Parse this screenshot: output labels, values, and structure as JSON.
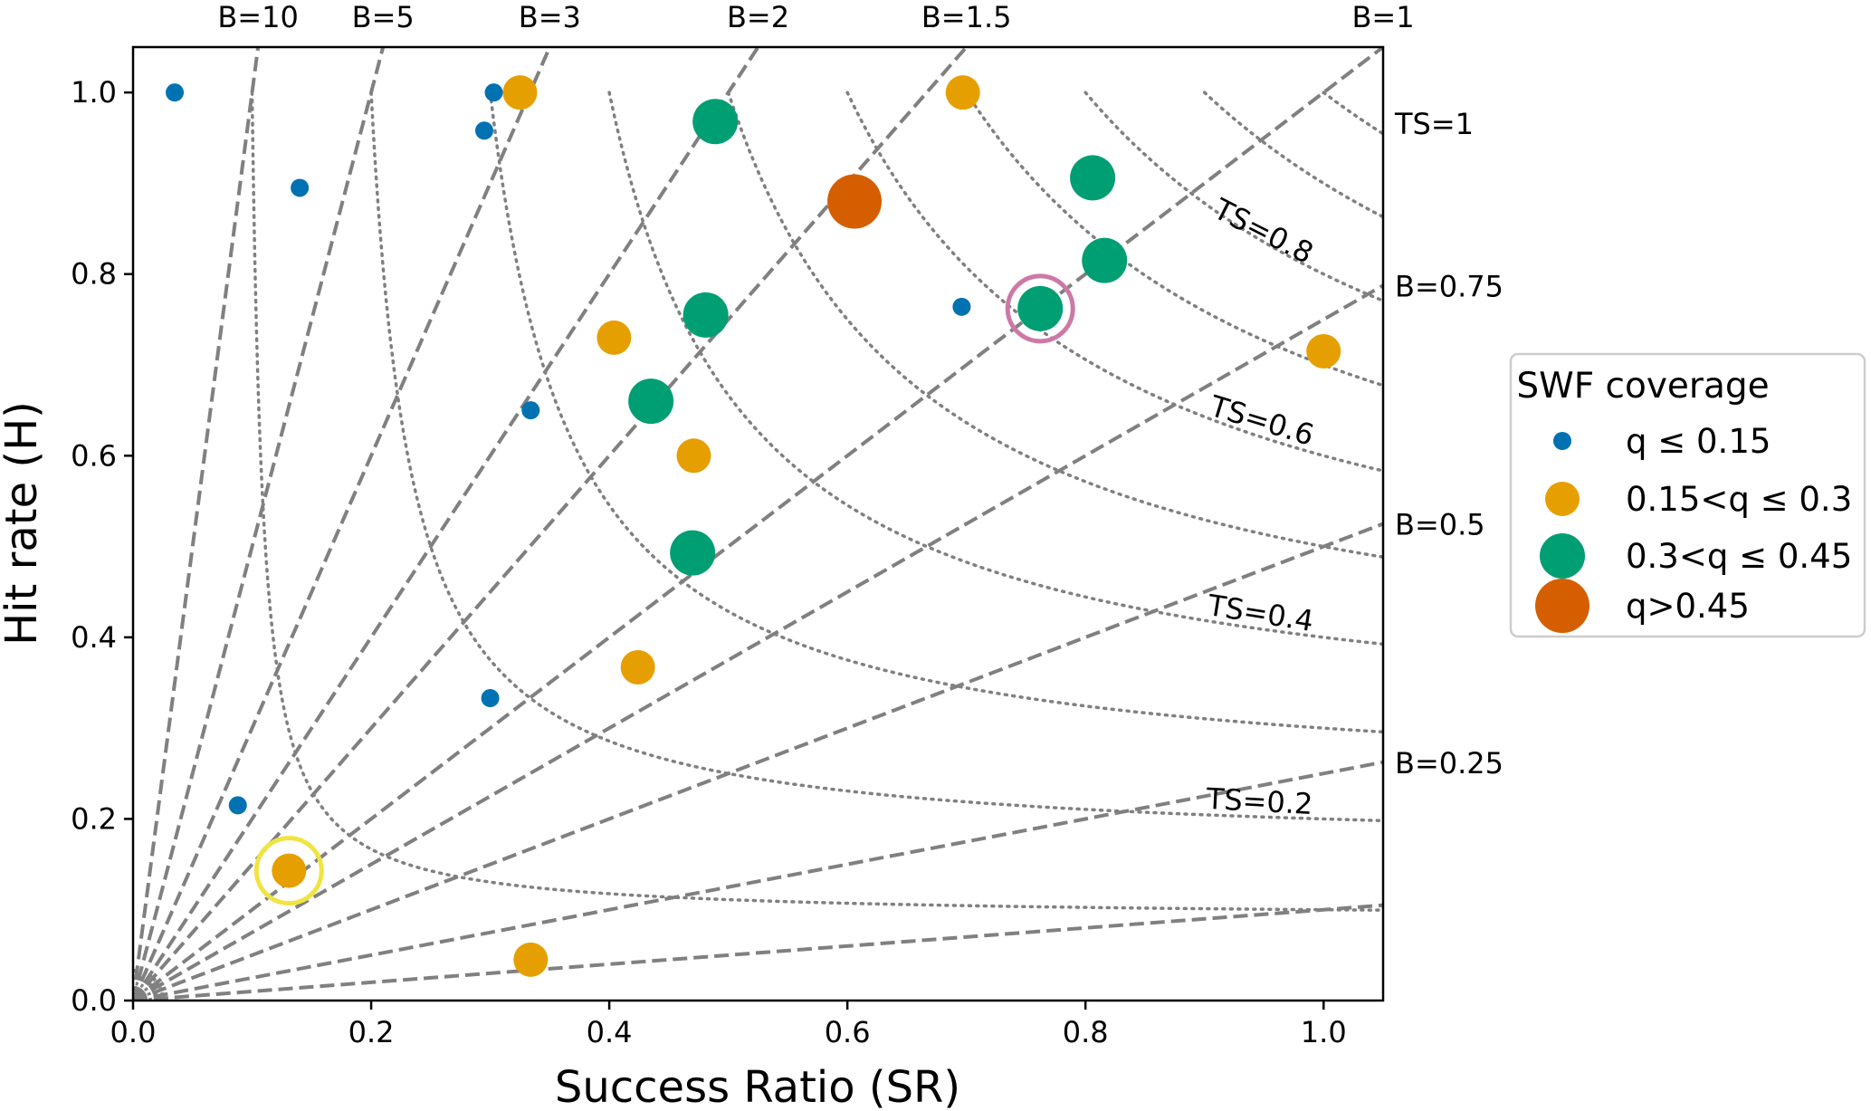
{
  "chart_data": {
    "type": "scatter",
    "subtype": "performance-diagram",
    "xlabel": "Success Ratio (SR)",
    "ylabel": "Hit rate (H)",
    "xlim": [
      0,
      1.05
    ],
    "ylim": [
      0,
      1.05
    ],
    "xticks": [
      0.0,
      0.2,
      0.4,
      0.6,
      0.8,
      1.0
    ],
    "yticks": [
      0.0,
      0.2,
      0.4,
      0.6,
      0.8,
      1.0
    ],
    "xtick_labels": [
      "0.0",
      "0.2",
      "0.4",
      "0.6",
      "0.8",
      "1.0"
    ],
    "ytick_labels": [
      "0.0",
      "0.2",
      "0.4",
      "0.6",
      "0.8",
      "1.0"
    ],
    "bias_lines": [
      {
        "bias": 10,
        "label": "B=10"
      },
      {
        "bias": 5,
        "label": "B=5"
      },
      {
        "bias": 3,
        "label": "B=3"
      },
      {
        "bias": 2,
        "label": "B=2"
      },
      {
        "bias": 1.5,
        "label": "B=1.5"
      },
      {
        "bias": 1,
        "label": "B=1"
      },
      {
        "bias": 0.75,
        "label": "B=0.75"
      },
      {
        "bias": 0.5,
        "label": "B=0.5"
      },
      {
        "bias": 0.25,
        "label": "B=0.25"
      },
      {
        "bias": 0.1,
        "label": ""
      }
    ],
    "ts_contours": [
      {
        "ts": 0.1,
        "label": ""
      },
      {
        "ts": 0.2,
        "label": "TS=0.2"
      },
      {
        "ts": 0.3,
        "label": ""
      },
      {
        "ts": 0.4,
        "label": "TS=0.4"
      },
      {
        "ts": 0.5,
        "label": ""
      },
      {
        "ts": 0.6,
        "label": "TS=0.6"
      },
      {
        "ts": 0.7,
        "label": ""
      },
      {
        "ts": 0.8,
        "label": "TS=0.8"
      },
      {
        "ts": 0.9,
        "label": ""
      },
      {
        "ts": 1.0,
        "label": "TS=1"
      }
    ],
    "legend": {
      "title": "SWF coverage",
      "placement": "right",
      "entries": [
        {
          "key": "q1",
          "label": "q ≤ 0.15",
          "color": "#0072b2"
        },
        {
          "key": "q2",
          "label": "0.15<q ≤ 0.3",
          "color": "#e69f00"
        },
        {
          "key": "q3",
          "label": "0.3<q ≤ 0.45",
          "color": "#009e73"
        },
        {
          "key": "q4",
          "label": "q>0.45",
          "color": "#d55e00"
        }
      ]
    },
    "series": [
      {
        "name": "q ≤ 0.15",
        "key": "q1",
        "points": [
          {
            "sr": 0.035,
            "h": 1.0
          },
          {
            "sr": 0.14,
            "h": 0.895
          },
          {
            "sr": 0.303,
            "h": 1.0
          },
          {
            "sr": 0.295,
            "h": 0.958
          },
          {
            "sr": 0.334,
            "h": 0.65
          },
          {
            "sr": 0.3,
            "h": 0.333
          },
          {
            "sr": 0.088,
            "h": 0.215
          },
          {
            "sr": 0.696,
            "h": 0.764
          }
        ]
      },
      {
        "name": "0.15<q ≤ 0.3",
        "key": "q2",
        "points": [
          {
            "sr": 0.325,
            "h": 1.0
          },
          {
            "sr": 0.697,
            "h": 1.0
          },
          {
            "sr": 0.404,
            "h": 0.73
          },
          {
            "sr": 0.471,
            "h": 0.6
          },
          {
            "sr": 0.424,
            "h": 0.367
          },
          {
            "sr": 0.131,
            "h": 0.143
          },
          {
            "sr": 0.334,
            "h": 0.045
          },
          {
            "sr": 1.0,
            "h": 0.715
          }
        ]
      },
      {
        "name": "0.3<q ≤ 0.45",
        "key": "q3",
        "points": [
          {
            "sr": 0.489,
            "h": 0.968
          },
          {
            "sr": 0.806,
            "h": 0.906
          },
          {
            "sr": 0.816,
            "h": 0.815
          },
          {
            "sr": 0.481,
            "h": 0.755
          },
          {
            "sr": 0.762,
            "h": 0.762
          },
          {
            "sr": 0.435,
            "h": 0.66
          },
          {
            "sr": 0.47,
            "h": 0.493
          }
        ]
      },
      {
        "name": "q>0.45",
        "key": "q4",
        "points": [
          {
            "sr": 0.606,
            "h": 0.88
          }
        ]
      }
    ],
    "highlights": [
      {
        "sr": 0.762,
        "h": 0.762,
        "color": "#cc79a7"
      },
      {
        "sr": 0.131,
        "h": 0.143,
        "color": "#f0e442"
      }
    ]
  }
}
